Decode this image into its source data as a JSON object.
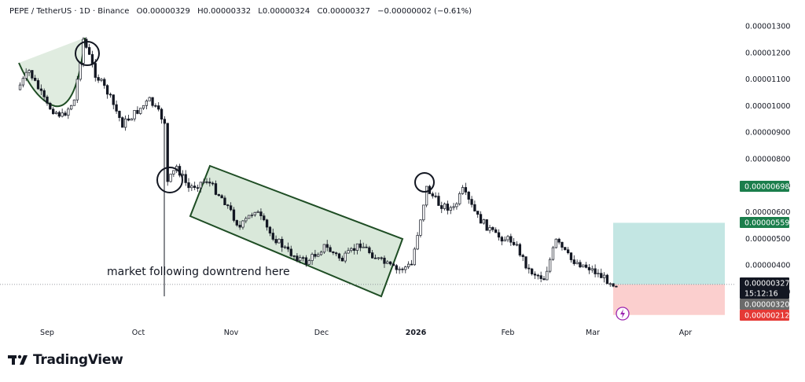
{
  "header": {
    "symbol": "PEPE / TetherUS · 1D · Binance",
    "open": "O0.00000329",
    "high": "H0.00000332",
    "low": "L0.00000324",
    "close": "C0.00000327",
    "change": "−0.00000002 (−0.61%)"
  },
  "brand": {
    "name": "TradingView"
  },
  "annotation": "market following downtrend here",
  "colors": {
    "candle_up": "#131722",
    "candle_down": "#131722",
    "highlight_green": "#2e7d32",
    "take_profit_zone": "#26a69a",
    "stop_zone": "#ef5350",
    "level_green": "#1b7e4c",
    "level_red": "#e53935",
    "price_tag_dark": "#131722",
    "price_tag_gray": "#6b6b6b"
  },
  "chart_data": {
    "type": "candlestick",
    "title": "",
    "x_ticks": [
      "Sep",
      "Oct",
      "Nov",
      "Dec",
      "2026",
      "Feb",
      "Mar",
      "Apr"
    ],
    "y_ticks": [
      "0.00001300",
      "0.00001200",
      "0.00001100",
      "0.00001000",
      "0.00000900",
      "0.00000800",
      "0.00000700",
      "0.00000600",
      "0.00000500",
      "0.00000400",
      "0.00000300"
    ],
    "y_tick_values": [
      1.3e-05,
      1.2e-05,
      1.1e-05,
      1e-05,
      9e-06,
      8e-06,
      7e-06,
      6e-06,
      5e-06,
      4e-06,
      3e-06
    ],
    "ylim": [
      1.9e-06,
      1.36e-05
    ],
    "close_path": [
      {
        "date": "2025-08-22",
        "close": 1.06e-05
      },
      {
        "date": "2025-08-26",
        "close": 1.13e-05
      },
      {
        "date": "2025-09-01",
        "close": 1e-05
      },
      {
        "date": "2025-09-06",
        "close": 9.6e-06
      },
      {
        "date": "2025-09-10",
        "close": 1.02e-05
      },
      {
        "date": "2025-09-13",
        "close": 1.25e-05
      },
      {
        "date": "2025-09-17",
        "close": 1.12e-05
      },
      {
        "date": "2025-09-21",
        "close": 1.05e-05
      },
      {
        "date": "2025-09-26",
        "close": 9.3e-06
      },
      {
        "date": "2025-10-01",
        "close": 9.8e-06
      },
      {
        "date": "2025-10-05",
        "close": 1.02e-05
      },
      {
        "date": "2025-10-10",
        "close": 9.4e-06
      },
      {
        "date": "2025-10-11",
        "close": 7.1e-06
      },
      {
        "date": "2025-10-14",
        "close": 7.7e-06
      },
      {
        "date": "2025-10-18",
        "close": 6.9e-06
      },
      {
        "date": "2025-10-24",
        "close": 7.2e-06
      },
      {
        "date": "2025-10-30",
        "close": 6.4e-06
      },
      {
        "date": "2025-11-04",
        "close": 5.4e-06
      },
      {
        "date": "2025-11-09",
        "close": 6.1e-06
      },
      {
        "date": "2025-11-14",
        "close": 5.2e-06
      },
      {
        "date": "2025-11-20",
        "close": 4.5e-06
      },
      {
        "date": "2025-11-26",
        "close": 4.1e-06
      },
      {
        "date": "2025-12-02",
        "close": 4.7e-06
      },
      {
        "date": "2025-12-08",
        "close": 4.2e-06
      },
      {
        "date": "2025-12-14",
        "close": 4.8e-06
      },
      {
        "date": "2025-12-20",
        "close": 4.2e-06
      },
      {
        "date": "2025-12-26",
        "close": 3.8e-06
      },
      {
        "date": "2025-12-31",
        "close": 4e-06
      },
      {
        "date": "2026-01-02",
        "close": 5.2e-06
      },
      {
        "date": "2026-01-05",
        "close": 6.9e-06
      },
      {
        "date": "2026-01-09",
        "close": 6.3e-06
      },
      {
        "date": "2026-01-14",
        "close": 6.1e-06
      },
      {
        "date": "2026-01-17",
        "close": 6.8e-06
      },
      {
        "date": "2026-01-22",
        "close": 5.8e-06
      },
      {
        "date": "2026-01-28",
        "close": 5.1e-06
      },
      {
        "date": "2026-02-03",
        "close": 4.9e-06
      },
      {
        "date": "2026-02-08",
        "close": 3.8e-06
      },
      {
        "date": "2026-02-13",
        "close": 3.5e-06
      },
      {
        "date": "2026-02-17",
        "close": 4.9e-06
      },
      {
        "date": "2026-02-22",
        "close": 4.2e-06
      },
      {
        "date": "2026-02-28",
        "close": 3.9e-06
      },
      {
        "date": "2026-03-05",
        "close": 3.5e-06
      },
      {
        "date": "2026-03-09",
        "close": 3.27e-06
      }
    ],
    "levels": [
      {
        "label": "0.00000698",
        "value": 6.98e-06,
        "color": "#1b7e4c"
      },
      {
        "label": "0.00000559",
        "value": 5.59e-06,
        "color": "#1b7e4c"
      },
      {
        "label": "0.00000327",
        "value": 3.27e-06,
        "color": "#131722"
      },
      {
        "label": "15:12:16",
        "value": 3.1e-06,
        "color": "#131722"
      },
      {
        "label": "0.00000320",
        "value": 2.92e-06,
        "color": "#6b6b6b"
      },
      {
        "label": "0.00000212",
        "value": 2.4e-06,
        "color": "#e53935"
      }
    ],
    "take_profit": {
      "from": 3.27e-06,
      "to": 5.59e-06
    },
    "stop_loss": {
      "from": 2.12e-06,
      "to": 3.27e-06
    },
    "grid": false,
    "legend": "none"
  }
}
